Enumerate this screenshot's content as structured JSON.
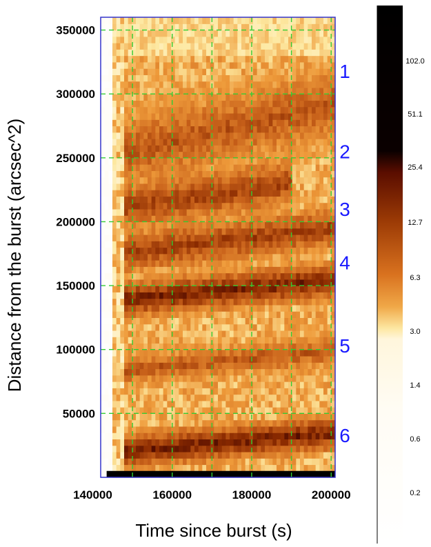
{
  "chart_data": {
    "type": "heatmap",
    "xlabel": "Time since burst (s)",
    "ylabel": "Distance from the burst (arcsec^2)",
    "xlim": [
      142000,
      201000
    ],
    "ylim": [
      0,
      360000
    ],
    "x_ticks": [
      140000,
      160000,
      180000,
      200000
    ],
    "y_ticks": [
      50000,
      100000,
      150000,
      200000,
      250000,
      300000,
      350000
    ],
    "grid_x": [
      150000,
      160000,
      170000,
      180000,
      190000,
      200000
    ],
    "grid_y": [
      50000,
      100000,
      150000,
      200000,
      250000,
      300000,
      350000
    ],
    "grid": true,
    "grid_color": "#33cc33",
    "frame_color": "#3333cc",
    "label_color": "#1a1aff",
    "ring_labels": [
      {
        "text": "1",
        "y": 318000
      },
      {
        "text": "2",
        "y": 255000
      },
      {
        "text": "3",
        "y": 210000
      },
      {
        "text": "4",
        "y": 168000
      },
      {
        "text": "5",
        "y": 103000
      },
      {
        "text": "6",
        "y": 33000
      }
    ],
    "colorbar": {
      "ticks": [
        "102.0",
        "51.1",
        "25.4",
        "12.7",
        "6.3",
        "3.0",
        "1.4",
        "0.6",
        "0.2"
      ],
      "colors": [
        "#000000",
        "#3a0000",
        "#8a2a00",
        "#c8611a",
        "#ee9a3a",
        "#fde8a0",
        "#fff9e8",
        "#ffffff"
      ]
    },
    "bands": [
      {
        "t0": 148000,
        "t1": 201000,
        "y0": 232000,
        "y1": 318000,
        "intensity": 0.55,
        "label": "1"
      },
      {
        "t0": 148000,
        "t1": 190000,
        "y0": 198000,
        "y1": 252000,
        "intensity": 0.6,
        "label": "2"
      },
      {
        "t0": 147000,
        "t1": 201000,
        "y0": 165000,
        "y1": 208000,
        "intensity": 0.62,
        "label": "3"
      },
      {
        "t0": 147000,
        "t1": 201000,
        "y0": 130000,
        "y1": 165000,
        "intensity": 0.7,
        "label": "4"
      },
      {
        "t0": 147000,
        "t1": 201000,
        "y0": 75000,
        "y1": 110000,
        "intensity": 0.55,
        "label": "5"
      },
      {
        "t0": 146000,
        "t1": 201000,
        "y0": 12000,
        "y1": 45000,
        "intensity": 0.7,
        "label": "6"
      }
    ],
    "saturated_row": {
      "y": 3000,
      "t_start": 143500
    }
  }
}
